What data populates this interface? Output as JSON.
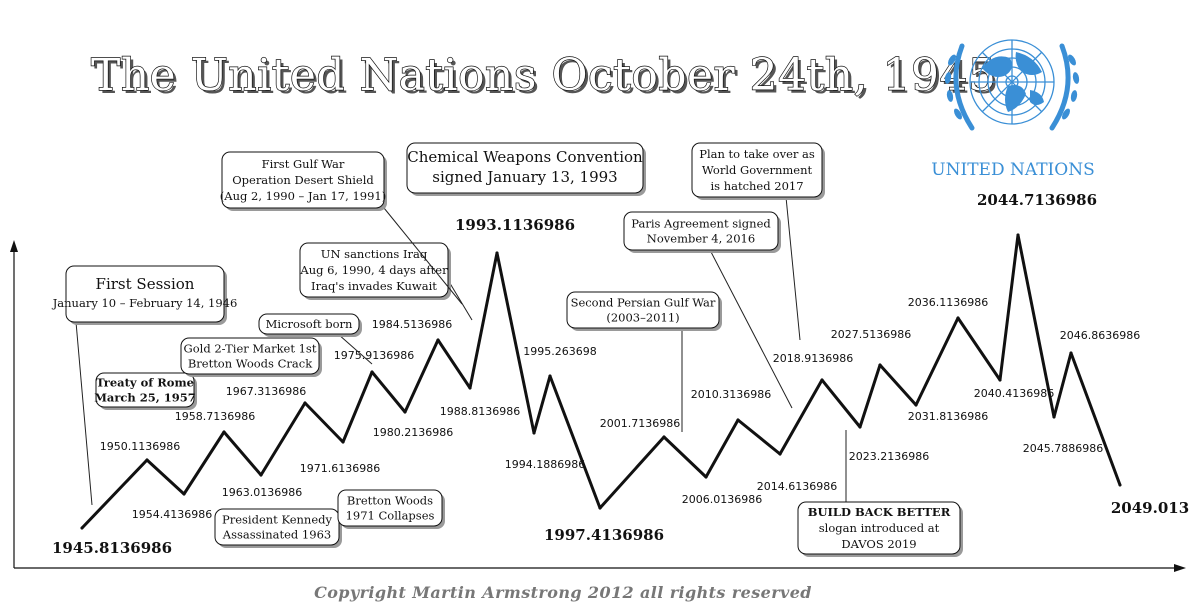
{
  "title": "The United Nations October 24th, 1945",
  "logo_text": "UNITED NATIONS",
  "logo_icon": "un-emblem-icon",
  "copyright": "Copyright Martin Armstrong 2012 all rights reserved",
  "colors": {
    "line": "#111111",
    "logo": "#3a8fd6"
  },
  "chart_data": {
    "type": "line",
    "title": "The United Nations October 24th, 1945",
    "xlabel": "",
    "ylabel": "",
    "grid": false,
    "points": [
      {
        "label": "1945.8136986",
        "type": "low",
        "emph": true
      },
      {
        "label": "1950.1136986",
        "type": "high"
      },
      {
        "label": "1954.4136986",
        "type": "low"
      },
      {
        "label": "1958.7136986",
        "type": "high"
      },
      {
        "label": "1963.0136986",
        "type": "low"
      },
      {
        "label": "1967.3136986",
        "type": "high"
      },
      {
        "label": "1971.6136986",
        "type": "low"
      },
      {
        "label": "1975.9136986",
        "type": "high"
      },
      {
        "label": "1980.2136986",
        "type": "low"
      },
      {
        "label": "1984.5136986",
        "type": "high"
      },
      {
        "label": "1988.8136986",
        "type": "low"
      },
      {
        "label": "1993.1136986",
        "type": "high",
        "emph": true
      },
      {
        "label": "1994.1886986",
        "type": "low"
      },
      {
        "label": "1995.263698",
        "type": "high"
      },
      {
        "label": "1997.4136986",
        "type": "low",
        "emph": true
      },
      {
        "label": "2001.7136986",
        "type": "high"
      },
      {
        "label": "2006.0136986",
        "type": "low"
      },
      {
        "label": "2010.3136986",
        "type": "high"
      },
      {
        "label": "2014.6136986",
        "type": "low"
      },
      {
        "label": "2018.9136986",
        "type": "high"
      },
      {
        "label": "2023.2136986",
        "type": "low"
      },
      {
        "label": "2027.5136986",
        "type": "high"
      },
      {
        "label": "2031.8136986",
        "type": "low"
      },
      {
        "label": "2036.1136986",
        "type": "high"
      },
      {
        "label": "2040.4136986",
        "type": "low"
      },
      {
        "label": "2044.7136986",
        "type": "high",
        "emph": true
      },
      {
        "label": "2045.7886986",
        "type": "low"
      },
      {
        "label": "2046.8636986",
        "type": "high"
      },
      {
        "label": "2049.013",
        "type": "low",
        "emph": true
      }
    ],
    "annotations": [
      {
        "lines": [
          "First Session",
          "January 10 – February 14, 1946"
        ]
      },
      {
        "lines": [
          "Treaty of Rome",
          "March 25, 1957"
        ]
      },
      {
        "lines": [
          "Gold 2-Tier Market 1st",
          "Bretton Woods Crack"
        ]
      },
      {
        "lines": [
          "Microsoft born"
        ]
      },
      {
        "lines": [
          "President Kennedy",
          "Assassinated 1963"
        ]
      },
      {
        "lines": [
          "Bretton Woods",
          "1971 Collapses"
        ]
      },
      {
        "lines": [
          "UN sanctions Iraq",
          "Aug 6, 1990, 4 days after",
          "Iraq's invades Kuwait"
        ]
      },
      {
        "lines": [
          "First Gulf War",
          "Operation Desert Shield",
          "(Aug 2, 1990 – Jan 17, 1991)"
        ]
      },
      {
        "lines": [
          "Chemical Weapons Convention",
          "signed January 13, 1993"
        ]
      },
      {
        "lines": [
          "Second Persian Gulf War",
          "(2003–2011)"
        ]
      },
      {
        "lines": [
          "Paris Agreement signed",
          "November 4, 2016"
        ]
      },
      {
        "lines": [
          "Plan to take over as",
          "World Government",
          "is hatched 2017"
        ]
      },
      {
        "lines": [
          "BUILD BACK BETTER",
          "slogan introduced at",
          "DAVOS 2019"
        ]
      }
    ]
  }
}
